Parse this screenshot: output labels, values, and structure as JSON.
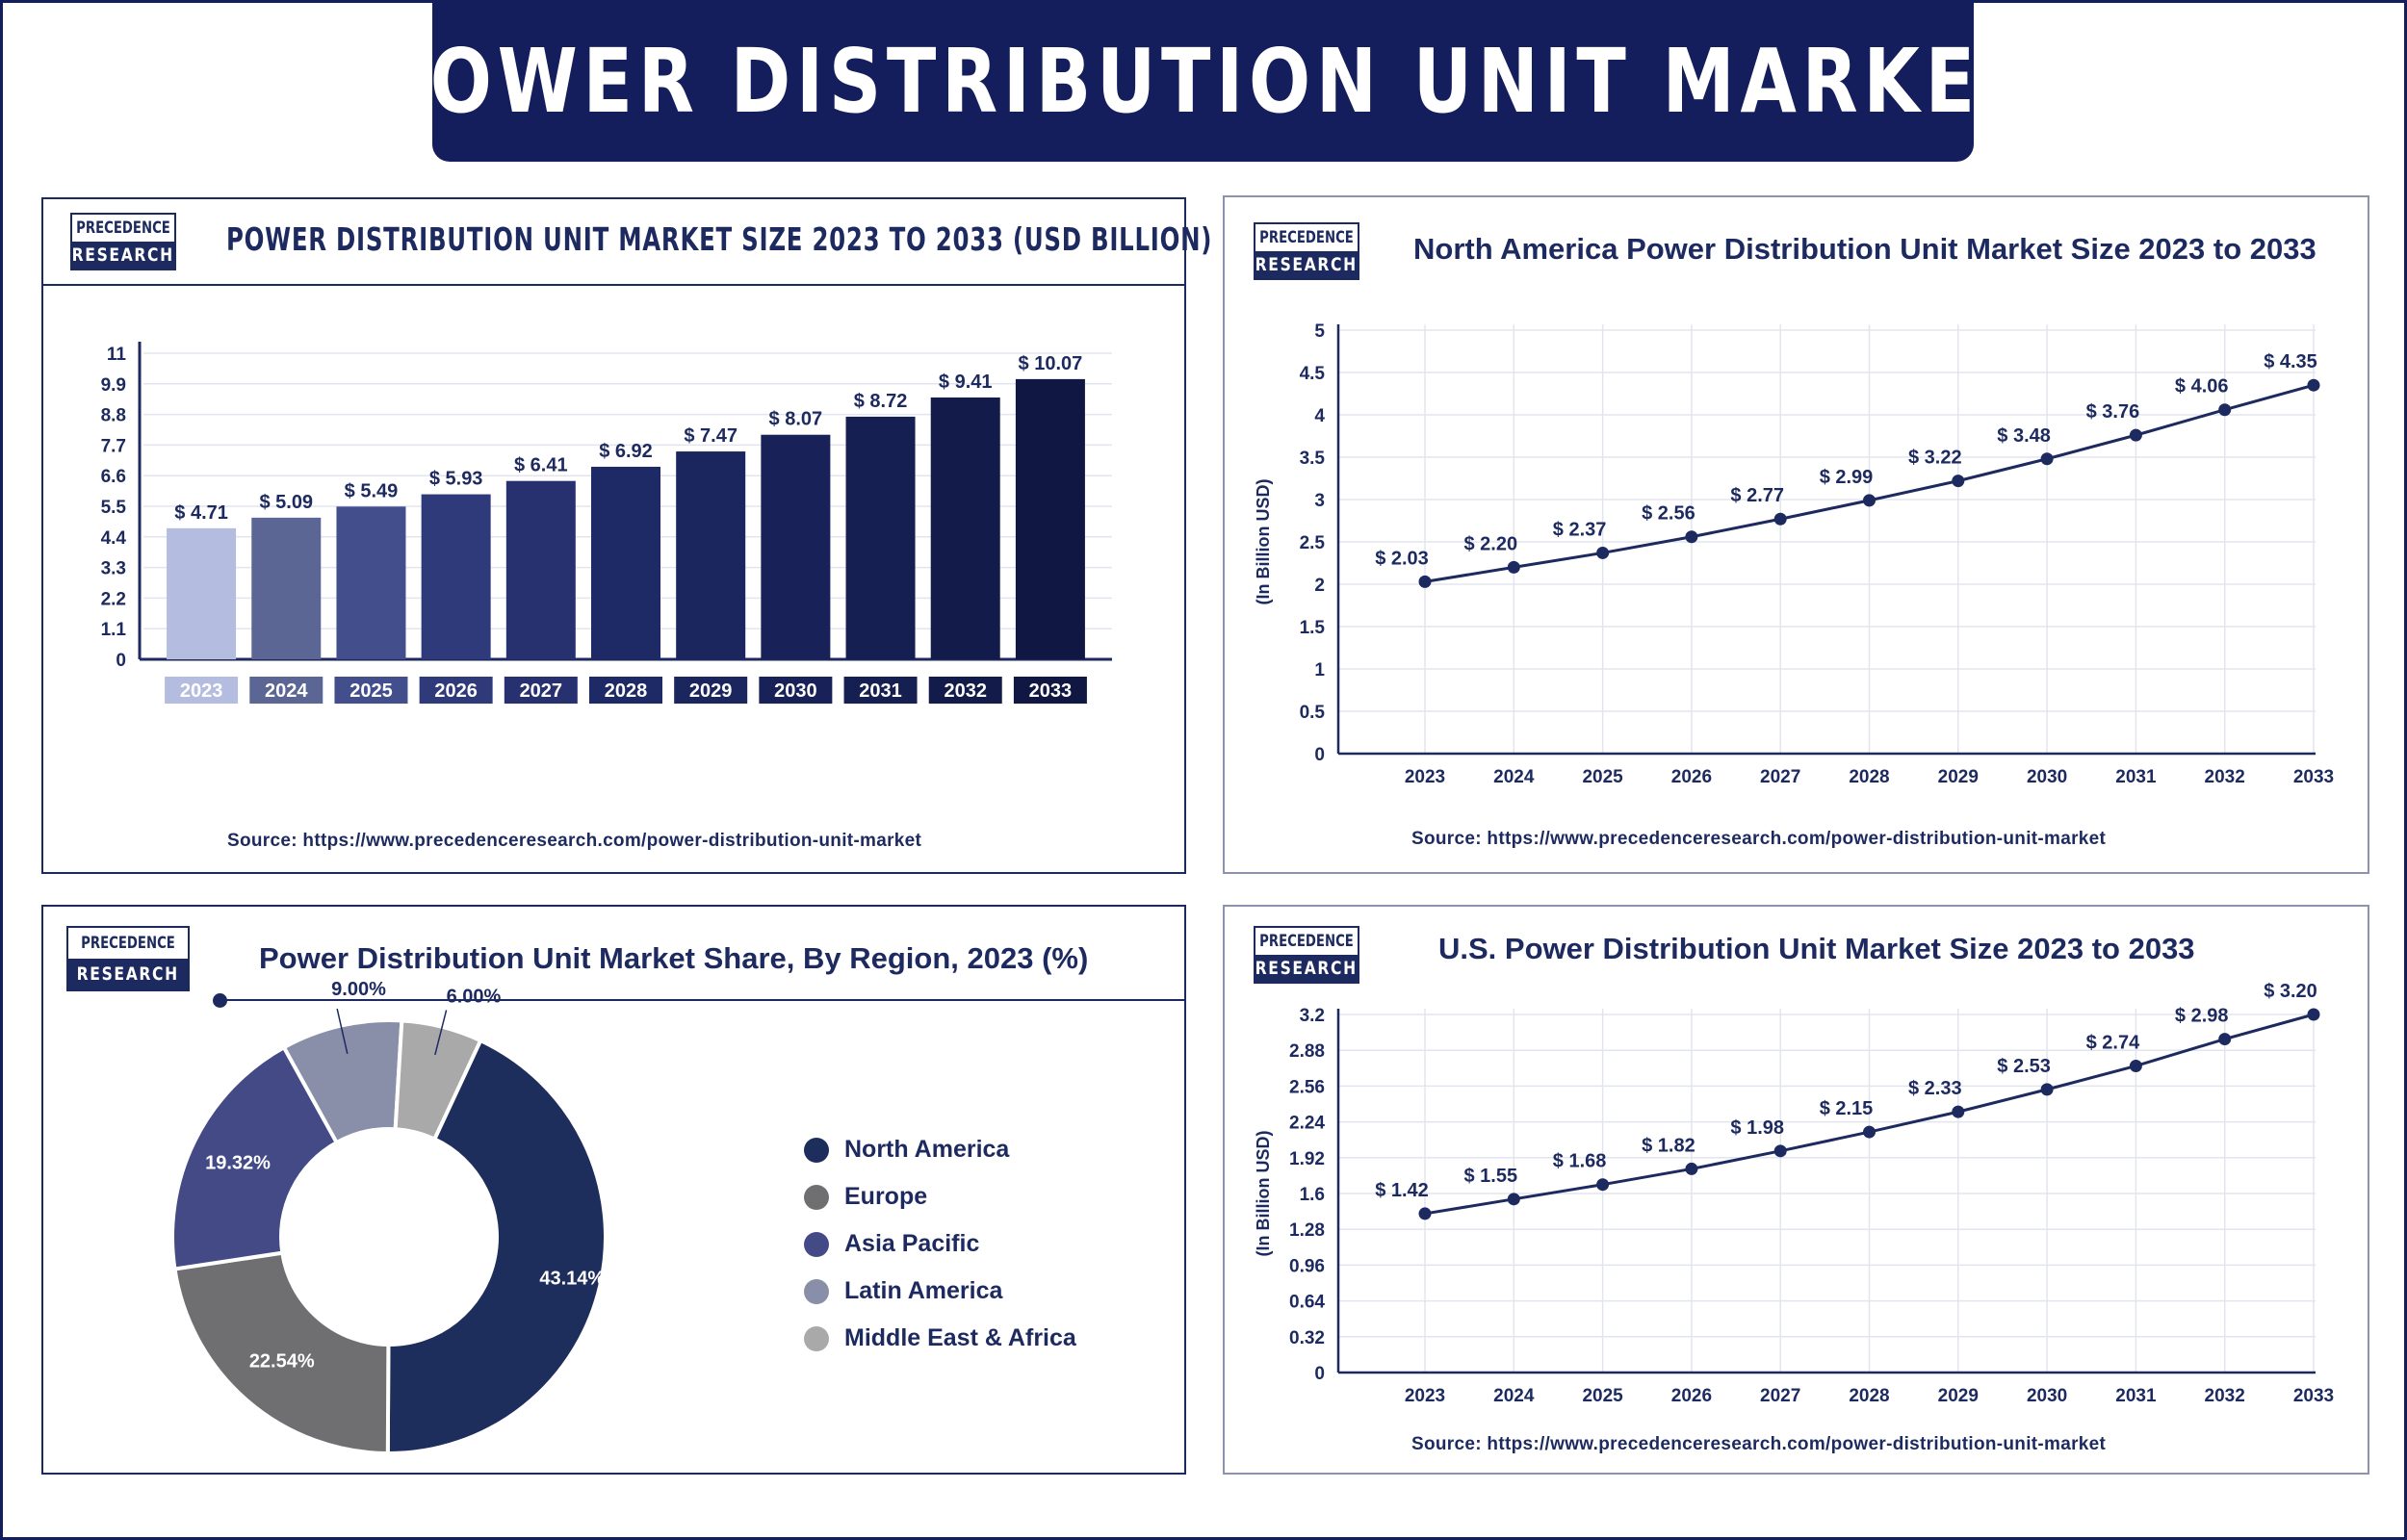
{
  "page": {
    "title": "POWER DISTRIBUTION UNIT MARKET",
    "logo_line1": "PRECEDENCE",
    "logo_line2": "RESEARCH",
    "source": "Source: https://www.precedenceresearch.com/power-distribution-unit-market"
  },
  "colors": {
    "navy": "#141e5c",
    "bar_colors": [
      "#b4bde0",
      "#5c6694",
      "#434f8c",
      "#2e3a7a",
      "#27316f",
      "#1d2a66",
      "#1b265f",
      "#182258",
      "#151f51",
      "#121b49",
      "#0f1742"
    ],
    "pie_colors": [
      "#1d2d5c",
      "#6f6f72",
      "#434a86",
      "#8a8fa9",
      "#a9a9aa"
    ]
  },
  "chart_data": [
    {
      "type": "bar",
      "title": "POWER DISTRIBUTION UNIT MARKET SIZE 2023 TO 2033 (USD BILLION)",
      "categories": [
        "2023",
        "2024",
        "2025",
        "2026",
        "2027",
        "2028",
        "2029",
        "2030",
        "2031",
        "2032",
        "2033"
      ],
      "values": [
        4.71,
        5.09,
        5.49,
        5.93,
        6.41,
        6.92,
        7.47,
        8.07,
        8.72,
        9.41,
        10.07
      ],
      "data_labels": [
        "$ 4.71",
        "$ 5.09",
        "$ 5.49",
        "$ 5.93",
        "$ 6.41",
        "$ 6.92",
        "$ 7.47",
        "$ 8.07",
        "$ 8.72",
        "$ 9.41",
        "$ 10.07"
      ],
      "yticks": [
        "0",
        "1.1",
        "2.2",
        "3.3",
        "4.4",
        "5.5",
        "6.6",
        "7.7",
        "8.8",
        "9.9",
        "11"
      ],
      "ylim": [
        0,
        11
      ],
      "xlabel": "",
      "ylabel": "",
      "grid": true
    },
    {
      "type": "line",
      "title": "North America Power Distribution Unit Market Size 2023 to 2033",
      "categories": [
        "2023",
        "2024",
        "2025",
        "2026",
        "2027",
        "2028",
        "2029",
        "2030",
        "2031",
        "2032",
        "2033"
      ],
      "values": [
        2.03,
        2.2,
        2.37,
        2.56,
        2.77,
        2.99,
        3.22,
        3.48,
        3.76,
        4.06,
        4.35
      ],
      "data_labels": [
        "$ 2.03",
        "$ 2.20",
        "$ 2.37",
        "$ 2.56",
        "$ 2.77",
        "$ 2.99",
        "$ 3.22",
        "$ 3.48",
        "$ 3.76",
        "$ 4.06",
        "$ 4.35"
      ],
      "yticks": [
        "0",
        "0.5",
        "1",
        "1.5",
        "2",
        "2.5",
        "3",
        "3.5",
        "4",
        "4.5",
        "5"
      ],
      "ylim": [
        0,
        5
      ],
      "xlabel": "",
      "ylabel": "(In Billion USD)",
      "grid": true
    },
    {
      "type": "pie",
      "title": "Power Distribution Unit Market Share, By Region, 2023 (%)",
      "labels": [
        "North America",
        "Europe",
        "Asia Pacific",
        "Latin America",
        "Middle East & Africa"
      ],
      "values": [
        43.14,
        22.54,
        19.32,
        9.0,
        6.0
      ],
      "value_labels": [
        "43.14%",
        "22.54%",
        "19.32%",
        "9.00%",
        "6.00%"
      ],
      "donut": true,
      "legend": "right"
    },
    {
      "type": "line",
      "title": "U.S. Power Distribution Unit Market Size 2023 to 2033",
      "categories": [
        "2023",
        "2024",
        "2025",
        "2026",
        "2027",
        "2028",
        "2029",
        "2030",
        "2031",
        "2032",
        "2033"
      ],
      "values": [
        1.42,
        1.55,
        1.68,
        1.82,
        1.98,
        2.15,
        2.33,
        2.53,
        2.74,
        2.98,
        3.2
      ],
      "data_labels": [
        "$ 1.42",
        "$ 1.55",
        "$ 1.68",
        "$ 1.82",
        "$ 1.98",
        "$ 2.15",
        "$ 2.33",
        "$ 2.53",
        "$ 2.74",
        "$ 2.98",
        "$ 3.20"
      ],
      "yticks": [
        "0",
        "0.32",
        "0.64",
        "0.96",
        "1.28",
        "1.6",
        "1.92",
        "2.24",
        "2.56",
        "2.88",
        "3.2"
      ],
      "ylim": [
        0,
        3.2
      ],
      "xlabel": "",
      "ylabel": "(In Billion USD)",
      "grid": true
    }
  ]
}
